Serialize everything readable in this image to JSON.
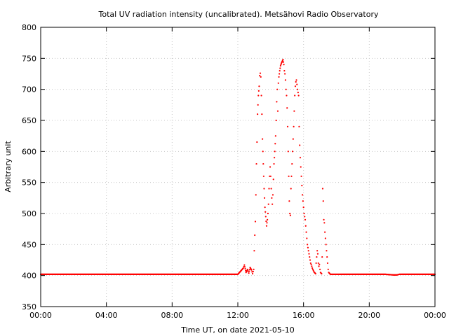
{
  "chart_data": {
    "type": "scatter",
    "title": "Total UV radiation intensity (uncalibrated). Metsähovi Radio Observatory",
    "xlabel": "Time UT, on date 2021-05-10",
    "ylabel": "Arbitrary unit",
    "xlim": [
      "00:00",
      "24:00"
    ],
    "ylim": [
      350,
      800
    ],
    "x_ticks": [
      "00:00",
      "04:00",
      "08:00",
      "12:00",
      "16:00",
      "20:00",
      "00:00"
    ],
    "y_ticks": [
      350,
      400,
      450,
      500,
      550,
      600,
      650,
      700,
      750,
      800
    ],
    "grid": true,
    "marker_color": "#ff0000",
    "series": [
      {
        "x": [
          "00:00",
          "01:00",
          "02:00",
          "03:00",
          "04:00",
          "05:00",
          "06:00",
          "07:00",
          "08:00",
          "09:00",
          "10:00",
          "11:00",
          "12:00",
          "12:20",
          "12:24",
          "12:30",
          "12:36",
          "12:40",
          "12:45",
          "12:50",
          "12:54",
          "12:58",
          "13:00",
          "13:02",
          "13:04",
          "13:06",
          "13:08",
          "13:10",
          "13:12",
          "13:15",
          "13:18",
          "13:20",
          "13:22",
          "13:24",
          "13:26",
          "13:28",
          "13:30",
          "13:33",
          "13:36",
          "13:39",
          "13:42",
          "13:45",
          "13:48",
          "13:50",
          "13:52",
          "13:54",
          "13:56",
          "13:58",
          "14:00",
          "14:02",
          "14:04",
          "14:06",
          "14:08",
          "14:10",
          "14:12",
          "14:15",
          "14:18",
          "14:20",
          "14:22",
          "14:24",
          "14:26",
          "14:28",
          "14:30",
          "14:33",
          "14:36",
          "14:39",
          "14:42",
          "14:45",
          "14:48",
          "14:50",
          "14:52",
          "14:54",
          "14:56",
          "14:58",
          "15:00",
          "15:02",
          "15:04",
          "15:06",
          "15:08",
          "15:10",
          "15:12",
          "15:14",
          "15:16",
          "15:18",
          "15:20",
          "15:22",
          "15:24",
          "15:26",
          "15:28",
          "15:30",
          "15:32",
          "15:34",
          "15:36",
          "15:38",
          "15:40",
          "15:42",
          "15:44",
          "15:46",
          "15:48",
          "15:50",
          "15:52",
          "15:54",
          "15:56",
          "15:58",
          "16:00",
          "16:02",
          "16:04",
          "16:06",
          "16:08",
          "16:10",
          "16:12",
          "16:14",
          "16:16",
          "16:18",
          "16:20",
          "16:22",
          "16:24",
          "16:26",
          "16:28",
          "16:30",
          "16:32",
          "16:34",
          "16:36",
          "16:38",
          "16:40",
          "16:42",
          "16:44",
          "16:46",
          "16:48",
          "16:50",
          "16:52",
          "16:54",
          "16:56",
          "16:58",
          "17:00",
          "17:02",
          "17:04",
          "17:06",
          "17:08",
          "17:10",
          "17:12",
          "17:14",
          "17:16",
          "17:18",
          "17:20",
          "17:22",
          "17:24",
          "17:26",
          "17:28",
          "17:30",
          "17:32",
          "17:34",
          "17:36",
          "17:38",
          "17:40",
          "17:42",
          "17:44",
          "17:46",
          "17:48",
          "17:50",
          "17:52",
          "17:54",
          "17:56",
          "17:58",
          "18:00",
          "18:02",
          "18:04",
          "18:06",
          "18:10",
          "18:20",
          "18:40",
          "19:00",
          "20:00",
          "21:00",
          "21:30",
          "21:40",
          "21:50",
          "22:00",
          "23:00",
          "24:00"
        ],
        "y": [
          402,
          402,
          402,
          402,
          402,
          402,
          402,
          402,
          402,
          402,
          402,
          402,
          402,
          412,
          417,
          405,
          410,
          404,
          413,
          409,
          403,
          410,
          440,
          465,
          487,
          530,
          580,
          615,
          660,
          690,
          705,
          722,
          726,
          720,
          690,
          660,
          620,
          580,
          540,
          510,
          495,
          480,
          490,
          500,
          515,
          540,
          560,
          575,
          560,
          540,
          525,
          515,
          530,
          555,
          580,
          600,
          625,
          650,
          680,
          700,
          665,
          710,
          720,
          730,
          738,
          742,
          745,
          748,
          740,
          730,
          725,
          715,
          700,
          690,
          670,
          640,
          600,
          560,
          520,
          500,
          497,
          540,
          560,
          580,
          600,
          620,
          640,
          665,
          690,
          705,
          712,
          715,
          708,
          700,
          695,
          690,
          640,
          610,
          590,
          575,
          560,
          545,
          530,
          520,
          510,
          500,
          495,
          490,
          480,
          470,
          460,
          450,
          445,
          440,
          435,
          430,
          425,
          420,
          418,
          415,
          412,
          410,
          408,
          406,
          405,
          404,
          403,
          420,
          430,
          440,
          435,
          420,
          415,
          418,
          410,
          405,
          404,
          403,
          430,
          540,
          520,
          490,
          485,
          470,
          460,
          450,
          440,
          430,
          420,
          410,
          405,
          404,
          403,
          402,
          402,
          402,
          402,
          402,
          402,
          402,
          402,
          402,
          402,
          402,
          402,
          402,
          402,
          402,
          402,
          402,
          402,
          402,
          402,
          402,
          401,
          401,
          402,
          402,
          402,
          402
        ]
      }
    ]
  }
}
